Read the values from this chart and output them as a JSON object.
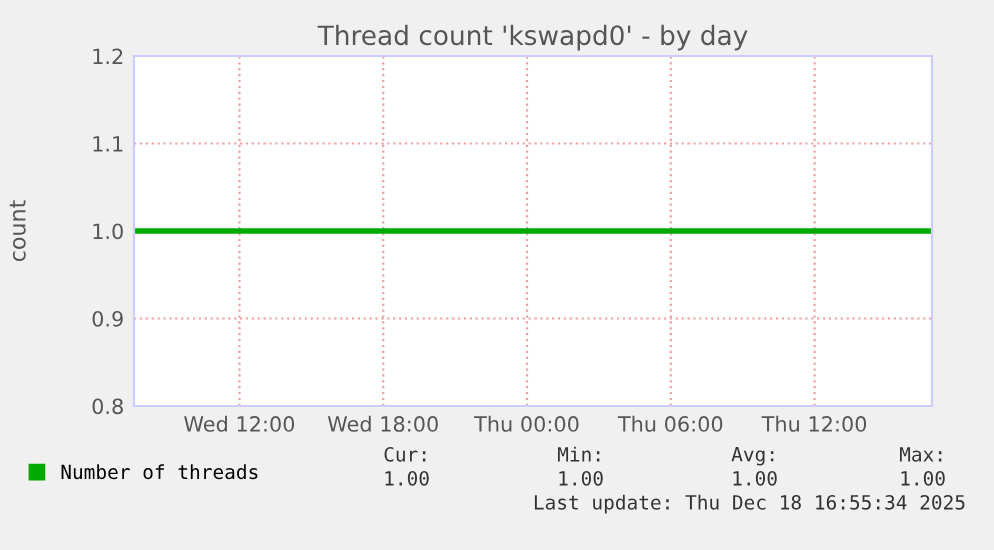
{
  "chart_data": {
    "type": "line",
    "title": "Thread count 'kswapd0' - by day",
    "ylabel": "count",
    "x": [
      "2025-12-17T07:36",
      "2025-12-18T16:54"
    ],
    "series": [
      {
        "name": "Number of threads",
        "color": "#00aa00",
        "values": [
          1.0,
          1.0
        ]
      }
    ],
    "xlim": [
      "2025-12-17T07:36",
      "2025-12-18T16:54"
    ],
    "xticks": [
      {
        "value": "2025-12-17T12:00",
        "label": "Wed 12:00"
      },
      {
        "value": "2025-12-17T18:00",
        "label": "Wed 18:00"
      },
      {
        "value": "2025-12-18T00:00",
        "label": "Thu 00:00"
      },
      {
        "value": "2025-12-18T06:00",
        "label": "Thu 06:00"
      },
      {
        "value": "2025-12-18T12:00",
        "label": "Thu 12:00"
      }
    ],
    "ylim": [
      0.8,
      1.2
    ],
    "yticks": [
      0.8,
      0.9,
      {
        "value": 1.0,
        "label": "1.0"
      },
      1.1,
      1.2
    ],
    "grid": true,
    "legend": "bottom left",
    "annotations": [
      "Cur:",
      "Min:",
      "Avg:",
      "Max:",
      "1.00",
      "1.00",
      "1.00",
      "1.00",
      "Last update: Thu Dec 18 16:55:34 2025"
    ]
  }
}
